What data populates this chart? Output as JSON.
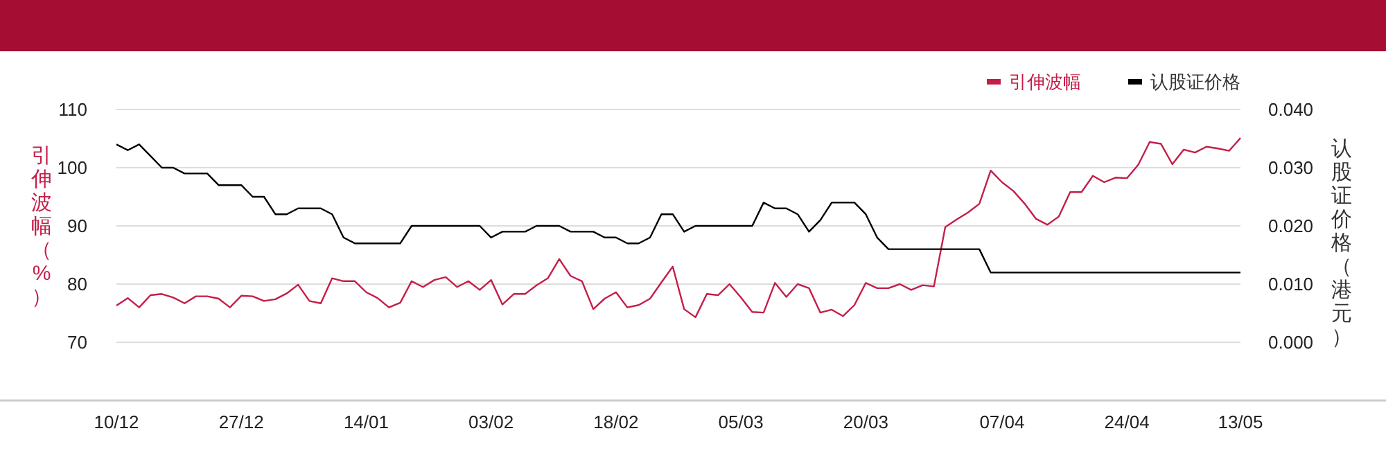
{
  "chart_data": {
    "type": "line",
    "categories": [
      "10/12",
      null,
      null,
      null,
      null,
      null,
      null,
      null,
      null,
      null,
      null,
      "27/12",
      null,
      null,
      null,
      null,
      null,
      null,
      null,
      null,
      null,
      null,
      "14/01",
      null,
      null,
      null,
      null,
      null,
      null,
      null,
      null,
      null,
      null,
      "03/02",
      null,
      null,
      null,
      null,
      null,
      null,
      null,
      null,
      null,
      null,
      "18/02",
      null,
      null,
      null,
      null,
      null,
      null,
      null,
      null,
      null,
      null,
      "05/03",
      null,
      null,
      null,
      null,
      null,
      null,
      null,
      null,
      null,
      null,
      "20/03",
      null,
      null,
      null,
      null,
      null,
      null,
      null,
      null,
      null,
      null,
      null,
      "07/04",
      null,
      null,
      null,
      null,
      null,
      null,
      null,
      null,
      null,
      null,
      "24/04",
      null,
      null,
      null,
      null,
      null,
      null,
      null,
      null,
      null,
      "13/05"
    ],
    "series": [
      {
        "name": "引伸波幅",
        "color": "#c41e48",
        "values": [
          76.3,
          77.6,
          76.0,
          78.1,
          78.3,
          77.7,
          76.7,
          77.9,
          77.9,
          77.5,
          76.0,
          78.0,
          77.9,
          77.1,
          77.4,
          78.4,
          79.9,
          77.1,
          76.7,
          81.0,
          80.5,
          80.5,
          78.6,
          77.6,
          76.0,
          76.8,
          80.5,
          79.5,
          80.7,
          81.2,
          79.5,
          80.5,
          79.0,
          80.7,
          76.5,
          78.3,
          78.3,
          79.8,
          81.0,
          84.3,
          81.4,
          80.5,
          75.7,
          77.5,
          78.6,
          76.0,
          76.4,
          77.5,
          80.3,
          83.0,
          75.7,
          74.3,
          78.3,
          78.1,
          80.0,
          77.7,
          75.2,
          75.1,
          80.2,
          77.8,
          80.0,
          79.3,
          75.1,
          75.6,
          74.5,
          76.4,
          80.2,
          79.3,
          79.3,
          80.0,
          79.0,
          79.8,
          79.6,
          89.8,
          91.1,
          92.3,
          93.8,
          99.5,
          97.5,
          96.0,
          93.8,
          91.2,
          90.2,
          91.6,
          95.8,
          95.8,
          98.6,
          97.5,
          98.3,
          98.2,
          100.5,
          104.4,
          104.1,
          100.6,
          103.1,
          102.6,
          103.6,
          103.3,
          102.9,
          105.1
        ]
      },
      {
        "name": "认股证价格",
        "color": "#000000",
        "axis": "y2",
        "values": [
          0.034,
          0.033,
          0.034,
          0.032,
          0.03,
          0.03,
          0.029,
          0.029,
          0.029,
          0.027,
          0.027,
          0.027,
          0.025,
          0.025,
          0.022,
          0.022,
          0.023,
          0.023,
          0.023,
          0.022,
          0.018,
          0.017,
          0.017,
          0.017,
          0.017,
          0.017,
          0.02,
          0.02,
          0.02,
          0.02,
          0.02,
          0.02,
          0.02,
          0.018,
          0.019,
          0.019,
          0.019,
          0.02,
          0.02,
          0.02,
          0.019,
          0.019,
          0.019,
          0.018,
          0.018,
          0.017,
          0.017,
          0.018,
          0.022,
          0.022,
          0.019,
          0.02,
          0.02,
          0.02,
          0.02,
          0.02,
          0.02,
          0.024,
          0.023,
          0.023,
          0.022,
          0.019,
          0.021,
          0.024,
          0.024,
          0.024,
          0.022,
          0.018,
          0.016,
          0.016,
          0.016,
          0.016,
          0.016,
          0.016,
          0.016,
          0.016,
          0.016,
          0.012,
          0.012,
          0.012,
          0.012,
          0.012,
          0.012,
          0.012,
          0.012,
          0.012,
          0.012,
          0.012,
          0.012,
          0.012,
          0.012,
          0.012,
          0.012,
          0.012,
          0.012,
          0.012,
          0.012,
          0.012,
          0.012,
          0.012
        ]
      }
    ],
    "ylabel": "引伸波幅（%）",
    "y2label": "认股证价格（港元）",
    "ylim": [
      60,
      110
    ],
    "yticks": [
      70,
      80,
      90,
      100,
      110
    ],
    "y2lim": [
      -0.01,
      0.04
    ],
    "y2ticks": [
      {
        "value": 0,
        "label": "0.000"
      },
      {
        "value": 0.01,
        "label": "0.010"
      },
      {
        "value": 0.02,
        "label": "0.020"
      },
      {
        "value": 0.03,
        "label": "0.030"
      },
      {
        "value": 0.04,
        "label": "0.040"
      }
    ],
    "grid": "y",
    "legend": "top right"
  }
}
